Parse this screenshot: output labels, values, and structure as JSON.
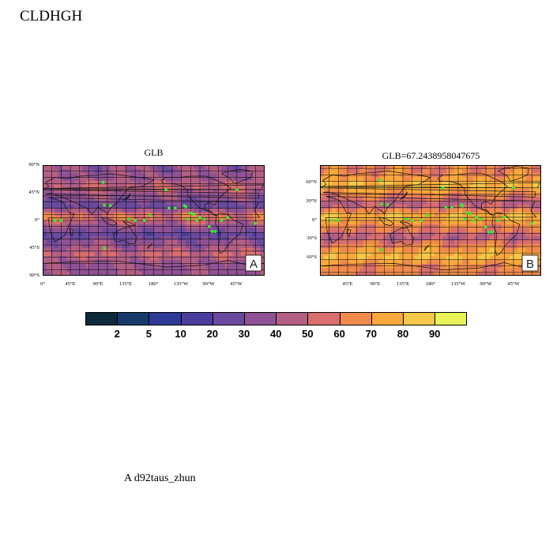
{
  "page_title": "CLDHGH",
  "caption": "A  d92taus_zhun",
  "panels": [
    {
      "title": "GLB",
      "letter": "A",
      "lat_ticks": [
        "90°N",
        "45°N",
        "0°",
        "45°S",
        "90°S"
      ],
      "lon_ticks": [
        "0°",
        "45°E",
        "90°E",
        "135°E",
        "180°",
        "135°W",
        "90°W",
        "45°W"
      ]
    },
    {
      "title": "GLB=67.2438958047675",
      "letter": "B",
      "lat_ticks": [
        "60°N",
        "30°N",
        "0°",
        "30°S",
        "60°S"
      ],
      "lon_ticks": [
        "45°E",
        "90°E",
        "135°E",
        "180°",
        "135°W",
        "90°W",
        "45°W"
      ]
    }
  ],
  "colorbar": {
    "labels": [
      "2",
      "5",
      "10",
      "20",
      "30",
      "40",
      "50",
      "60",
      "70",
      "80",
      "90"
    ],
    "colors": [
      "#0c2a3c",
      "#163a6a",
      "#2f3a98",
      "#4a3d9e",
      "#6a4a9c",
      "#8f5294",
      "#b35f84",
      "#d86e6e",
      "#ef8a4c",
      "#f8a83c",
      "#f6c84a",
      "#eaf45a"
    ]
  },
  "marker_color": "#33ee33",
  "icons": [
    "coastline-map",
    "station-marker"
  ]
}
